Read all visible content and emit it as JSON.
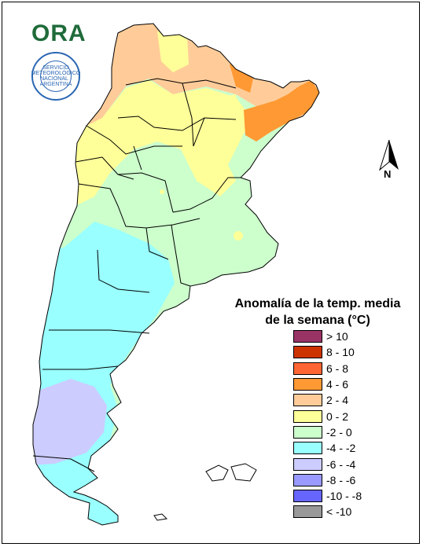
{
  "logo": {
    "text": "ORA",
    "seal_text": "SERVICIO METEOROLÓGICO NACIONAL · ARGENTINA"
  },
  "north_arrow": {
    "label": "N",
    "icon": "north-arrow-icon"
  },
  "legend": {
    "title_line1": "Anomalía de la temp. media",
    "title_line2": "de la semana (°C)",
    "items": [
      {
        "label": "> 10",
        "color": "#993366"
      },
      {
        "label": "8 - 10",
        "color": "#cc3300"
      },
      {
        "label": "6 - 8",
        "color": "#ff6633"
      },
      {
        "label": "4 - 6",
        "color": "#ff9933"
      },
      {
        "label": "2 - 4",
        "color": "#ffcc99"
      },
      {
        "label": "0 - 2",
        "color": "#ffff99"
      },
      {
        "label": "-2 - 0",
        "color": "#ccffcc"
      },
      {
        "label": "-4 - -2",
        "color": "#99ffff"
      },
      {
        "label": "-6 - -4",
        "color": "#ccccff"
      },
      {
        "label": "-8 - -6",
        "color": "#9999ff"
      },
      {
        "label": "-10 - -8",
        "color": "#6666ff"
      },
      {
        "label": "< -10",
        "color": "#999999"
      }
    ]
  }
}
